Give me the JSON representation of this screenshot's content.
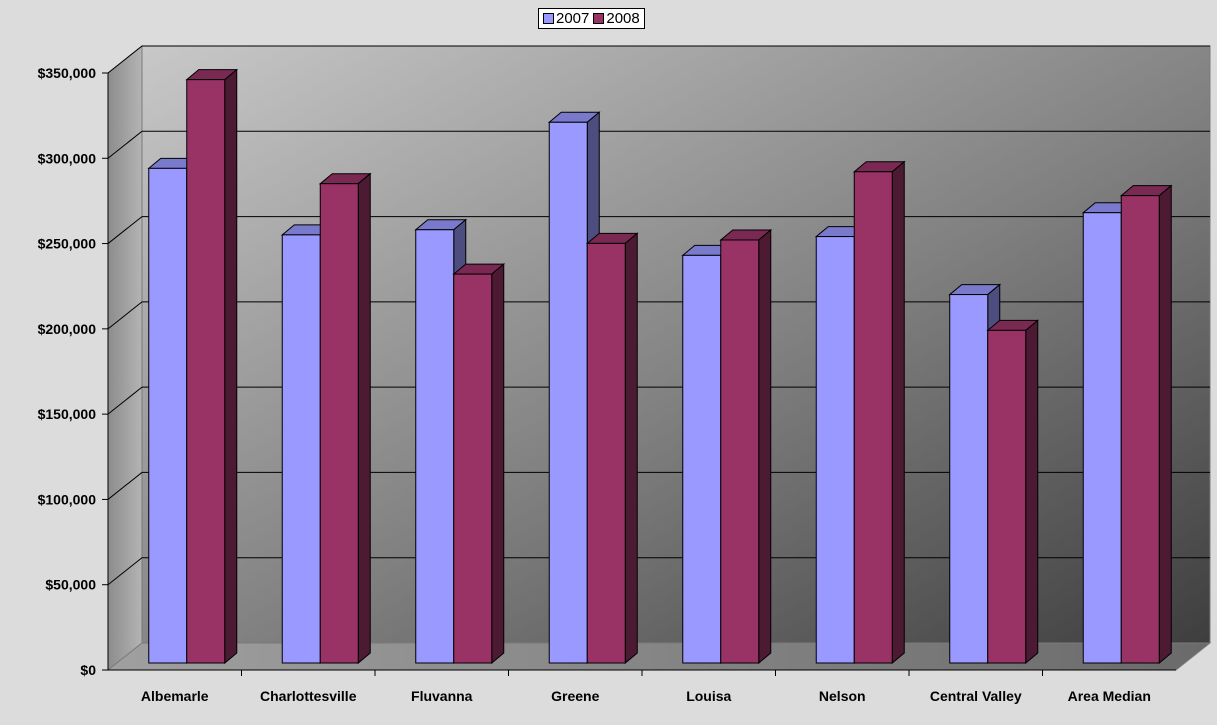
{
  "chart_data": {
    "type": "bar",
    "title": "",
    "xlabel": "",
    "ylabel": "",
    "categories": [
      "Albemarle",
      "Charlottesville",
      "Fluvanna",
      "Greene",
      "Louisa",
      "Nelson",
      "Central Valley",
      "Area Median"
    ],
    "series": [
      {
        "name": "2007",
        "color": "#9999ff",
        "values": [
          290000,
          251000,
          254000,
          317000,
          239000,
          250000,
          216000,
          264000
        ]
      },
      {
        "name": "2008",
        "color": "#993366",
        "values": [
          342000,
          281000,
          228000,
          246000,
          248000,
          288000,
          195000,
          274000
        ]
      }
    ],
    "ylim": [
      0,
      350000
    ],
    "y_ticks": [
      0,
      50000,
      100000,
      150000,
      200000,
      250000,
      300000,
      350000
    ],
    "y_tick_labels": [
      "$0",
      "$50,000",
      "$100,000",
      "$150,000",
      "$200,000",
      "$250,000",
      "$300,000",
      "$350,000"
    ],
    "legend_position": "top-center",
    "grid": true,
    "style": "3d-clustered-column"
  }
}
